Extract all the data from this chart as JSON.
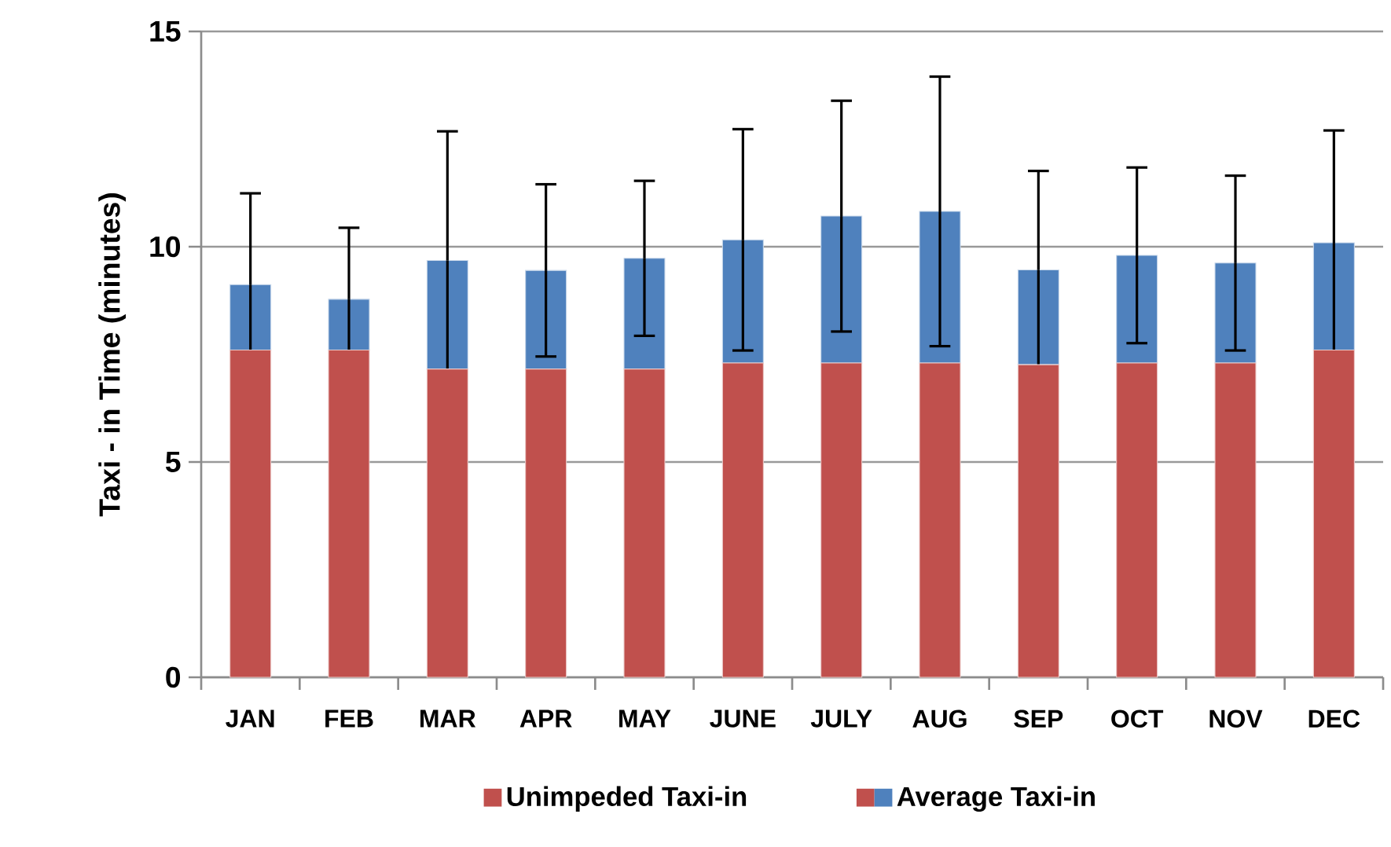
{
  "chart_data": {
    "type": "bar",
    "stacked": true,
    "categories": [
      "JAN",
      "FEB",
      "MAR",
      "APR",
      "MAY",
      "JUNE",
      "JULY",
      "AUG",
      "SEP",
      "OCT",
      "NOV",
      "DEC"
    ],
    "ylabel": "Taxi  - in Time (minutes)",
    "ylim": [
      0,
      15
    ],
    "yticks": [
      0,
      5,
      10,
      15
    ],
    "grid": "y",
    "legend": "bottom",
    "series": [
      {
        "name": "Unimpeded Taxi-in",
        "color": "#c0504d",
        "values": [
          7.6,
          7.6,
          7.16,
          7.16,
          7.16,
          7.3,
          7.3,
          7.3,
          7.26,
          7.3,
          7.3,
          7.6
        ]
      },
      {
        "name": "Average Taxi-in",
        "color": "#4f81bd",
        "values": [
          1.52,
          1.18,
          2.52,
          2.29,
          2.57,
          2.86,
          3.41,
          3.52,
          2.2,
          2.5,
          2.32,
          2.49
        ],
        "errors": [
          2.12,
          1.66,
          3.0,
          2.0,
          1.8,
          2.57,
          2.68,
          3.13,
          2.3,
          2.04,
          2.03,
          2.61
        ]
      }
    ]
  }
}
